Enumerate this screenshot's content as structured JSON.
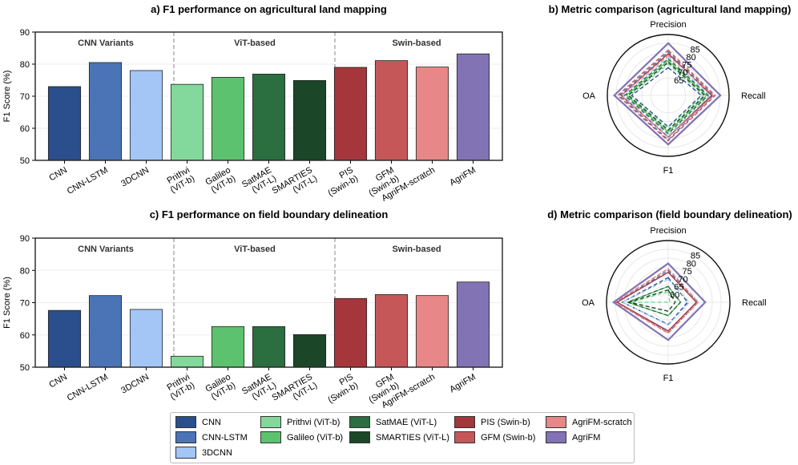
{
  "chart_data": [
    {
      "panel": "a",
      "type": "bar",
      "title": "a) F1 performance on agricultural land mapping",
      "ylabel": "F1 Score (%)",
      "ylim": [
        50,
        90
      ],
      "yticks": [
        50,
        60,
        70,
        80,
        90
      ],
      "categories": [
        "CNN",
        "CNN-LSTM",
        "3DCNN",
        "Prithvi\n(ViT-b)",
        "Galileo\n(ViT-b)",
        "SatMAE\n(ViT-L)",
        "SMARTIES\n(ViT-L)",
        "PIS\n(Swin-b)",
        "GFM\n(Swin-b)",
        "AgriFM-scratch",
        "AgriFM"
      ],
      "values": [
        73.0,
        80.5,
        78.0,
        73.7,
        75.9,
        76.9,
        74.9,
        79.0,
        81.1,
        79.1,
        83.2
      ],
      "groups": [
        "CNN Variants",
        "ViT-based",
        "Swin-based"
      ]
    },
    {
      "panel": "c",
      "type": "bar",
      "title": "c) F1 performance on field boundary delineation",
      "ylabel": "F1 Score (%)",
      "ylim": [
        50,
        90
      ],
      "yticks": [
        50,
        60,
        70,
        80,
        90
      ],
      "categories": [
        "CNN",
        "CNN-LSTM",
        "3DCNN",
        "Prithvi\n(ViT-b)",
        "Galileo\n(ViT-b)",
        "SatMAE\n(ViT-L)",
        "SMARTIES\n(ViT-L)",
        "PIS\n(Swin-b)",
        "GFM\n(Swin-b)",
        "AgriFM-scratch",
        "AgriFM"
      ],
      "values": [
        67.6,
        72.2,
        67.9,
        53.4,
        62.6,
        62.6,
        60.1,
        71.3,
        72.5,
        72.2,
        76.4
      ],
      "groups": [
        "CNN Variants",
        "ViT-based",
        "Swin-based"
      ]
    },
    {
      "panel": "b",
      "type": "radar",
      "title": "b) Metric comparison (agricultural land mapping)",
      "axes": [
        "Precision",
        "Recall",
        "F1",
        "OA"
      ],
      "rlim": [
        55,
        90
      ],
      "rticks": [
        65,
        70,
        75,
        80,
        85
      ],
      "series": [
        {
          "name": "CNN",
          "values": [
            71,
            74,
            73,
            76
          ]
        },
        {
          "name": "CNN-LSTM",
          "values": [
            80,
            81,
            80.5,
            83
          ]
        },
        {
          "name": "3DCNN",
          "values": [
            77,
            79,
            78,
            81
          ]
        },
        {
          "name": "Prithvi (ViT-b)",
          "values": [
            73,
            75,
            73.7,
            77
          ]
        },
        {
          "name": "Galileo (ViT-b)",
          "values": [
            75,
            77,
            75.9,
            79
          ]
        },
        {
          "name": "SatMAE (ViT-L)",
          "values": [
            76,
            78,
            76.9,
            80
          ]
        },
        {
          "name": "SMARTIES (ViT-L)",
          "values": [
            74,
            76,
            74.9,
            78
          ]
        },
        {
          "name": "PIS (Swin-b)",
          "values": [
            79,
            80,
            79,
            82
          ]
        },
        {
          "name": "GFM (Swin-b)",
          "values": [
            81,
            82,
            81.1,
            84
          ]
        },
        {
          "name": "AgriFM-scratch",
          "values": [
            78,
            81,
            79.1,
            82
          ]
        },
        {
          "name": "AgriFM",
          "values": [
            85,
            85,
            83.2,
            86
          ]
        }
      ]
    },
    {
      "panel": "d",
      "type": "radar",
      "title": "d) Metric comparison (field boundary delineation)",
      "axes": [
        "Precision",
        "Recall",
        "F1",
        "OA"
      ],
      "rlim": [
        55,
        90
      ],
      "rticks": [
        60,
        65,
        70,
        75,
        80,
        85
      ],
      "series": [
        {
          "name": "CNN",
          "values": [
            69,
            66,
            67.6,
            81
          ]
        },
        {
          "name": "CNN-LSTM",
          "values": [
            73,
            72,
            72.2,
            84
          ]
        },
        {
          "name": "3DCNN",
          "values": [
            68,
            67,
            67.9,
            81
          ]
        },
        {
          "name": "Prithvi (ViT-b)",
          "values": [
            61,
            56,
            53.4,
            76
          ]
        },
        {
          "name": "Galileo (ViT-b)",
          "values": [
            64,
            62,
            62.6,
            78
          ]
        },
        {
          "name": "SatMAE (ViT-L)",
          "values": [
            64,
            62,
            62.6,
            78
          ]
        },
        {
          "name": "SMARTIES (ViT-L)",
          "values": [
            62,
            59,
            60.1,
            77
          ]
        },
        {
          "name": "PIS (Swin-b)",
          "values": [
            72,
            71,
            71.3,
            84
          ]
        },
        {
          "name": "GFM (Swin-b)",
          "values": [
            74,
            72,
            72.5,
            85
          ]
        },
        {
          "name": "AgriFM-scratch",
          "values": [
            74,
            72,
            72.2,
            85
          ]
        },
        {
          "name": "AgriFM",
          "values": [
            77,
            76,
            76.4,
            86
          ]
        }
      ]
    }
  ],
  "colors": [
    "#2b4e8c",
    "#4a74b5",
    "#a3c6f7",
    "#83d89b",
    "#5cc26f",
    "#2b6e3f",
    "#1b4627",
    "#a4363c",
    "#c65759",
    "#e78787",
    "#8273b4"
  ],
  "legend": {
    "items": [
      "CNN",
      "CNN-LSTM",
      "3DCNN",
      "Prithvi (ViT-b)",
      "Galileo (ViT-b)",
      "SatMAE (ViT-L)",
      "SMARTIES (ViT-L)",
      "PIS (Swin-b)",
      "GFM (Swin-b)",
      "AgriFM-scratch",
      "AgriFM"
    ]
  }
}
